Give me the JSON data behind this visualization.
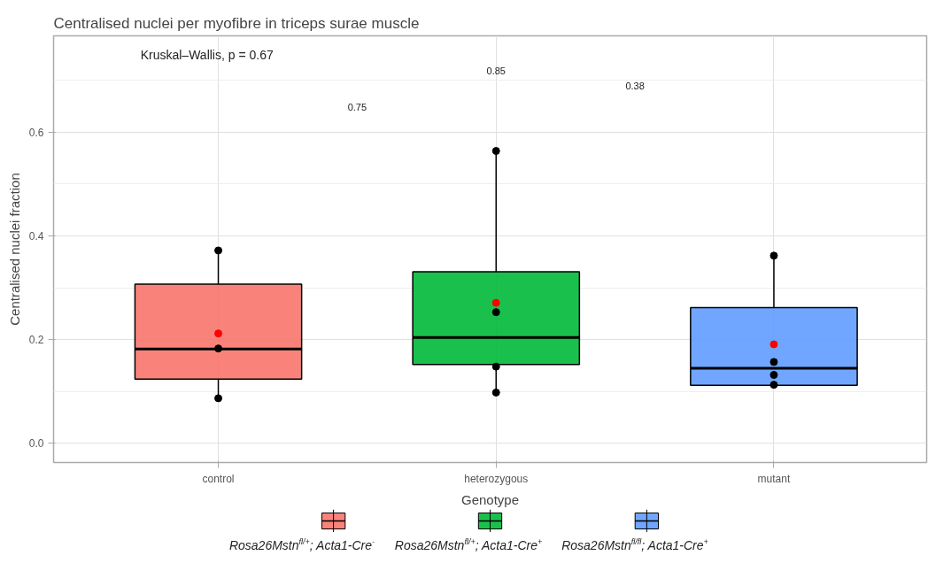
{
  "chart_data": {
    "type": "box",
    "title": "Centralised nuclei per myofibre in triceps surae muscle",
    "xlabel": "Genotype",
    "ylabel": "Centralised nuclei fraction",
    "categories": [
      "control",
      "heterozygous",
      "mutant"
    ],
    "ylim": [
      -0.037,
      0.786
    ],
    "yticks": [
      {
        "value": 0,
        "label": "0.0"
      },
      {
        "value": 0.2,
        "label": "0.2"
      },
      {
        "value": 0.4,
        "label": "0.4"
      },
      {
        "value": 0.6,
        "label": "0.6"
      }
    ],
    "grid": true,
    "legend": "bottom",
    "series": [
      {
        "name": "Rosa26Mstn$^{fl/+}$; Acta1-Cre$^{-}$",
        "color": "#f8766d",
        "boxes": [
          {
            "low": 0.082,
            "q1": 0.124,
            "median": 0.182,
            "q3": 0.307,
            "high": 0.375
          },
          null,
          null
        ]
      },
      {
        "name": "Rosa26Mstn$^{fl/+}$; Acta1-Cre$^{+}$",
        "color": "#00ba38",
        "boxes": [
          null,
          {
            "low": 0.093,
            "q1": 0.152,
            "median": 0.204,
            "q3": 0.331,
            "high": 0.566
          },
          null
        ]
      },
      {
        "name": "Rosa26Mstn$^{fl/fl}$; Acta1-Cre$^{+}$",
        "color": "#619cff",
        "boxes": [
          null,
          null,
          {
            "low": 0.112,
            "q1": 0.112,
            "median": 0.145,
            "q3": 0.262,
            "high": 0.366
          }
        ]
      },
      {
        "type": "scatter",
        "color": "#000000",
        "x": [
          "control",
          "control",
          "control",
          "heterozygous",
          "heterozygous",
          "heterozygous",
          "heterozygous",
          "mutant",
          "mutant",
          "mutant",
          "mutant"
        ],
        "values": [
          0.372,
          0.183,
          0.087,
          0.564,
          0.253,
          0.148,
          0.098,
          0.362,
          0.157,
          0.132,
          0.113
        ]
      },
      {
        "type": "scatter",
        "color": "#ff0000",
        "x": [
          "control",
          "heterozygous",
          "mutant"
        ],
        "values": [
          0.212,
          0.271,
          0.191
        ]
      }
    ],
    "annotations": [
      "Kruskal–Wallis, p = 0.67",
      "0.85",
      "0.38",
      "0.75"
    ]
  }
}
